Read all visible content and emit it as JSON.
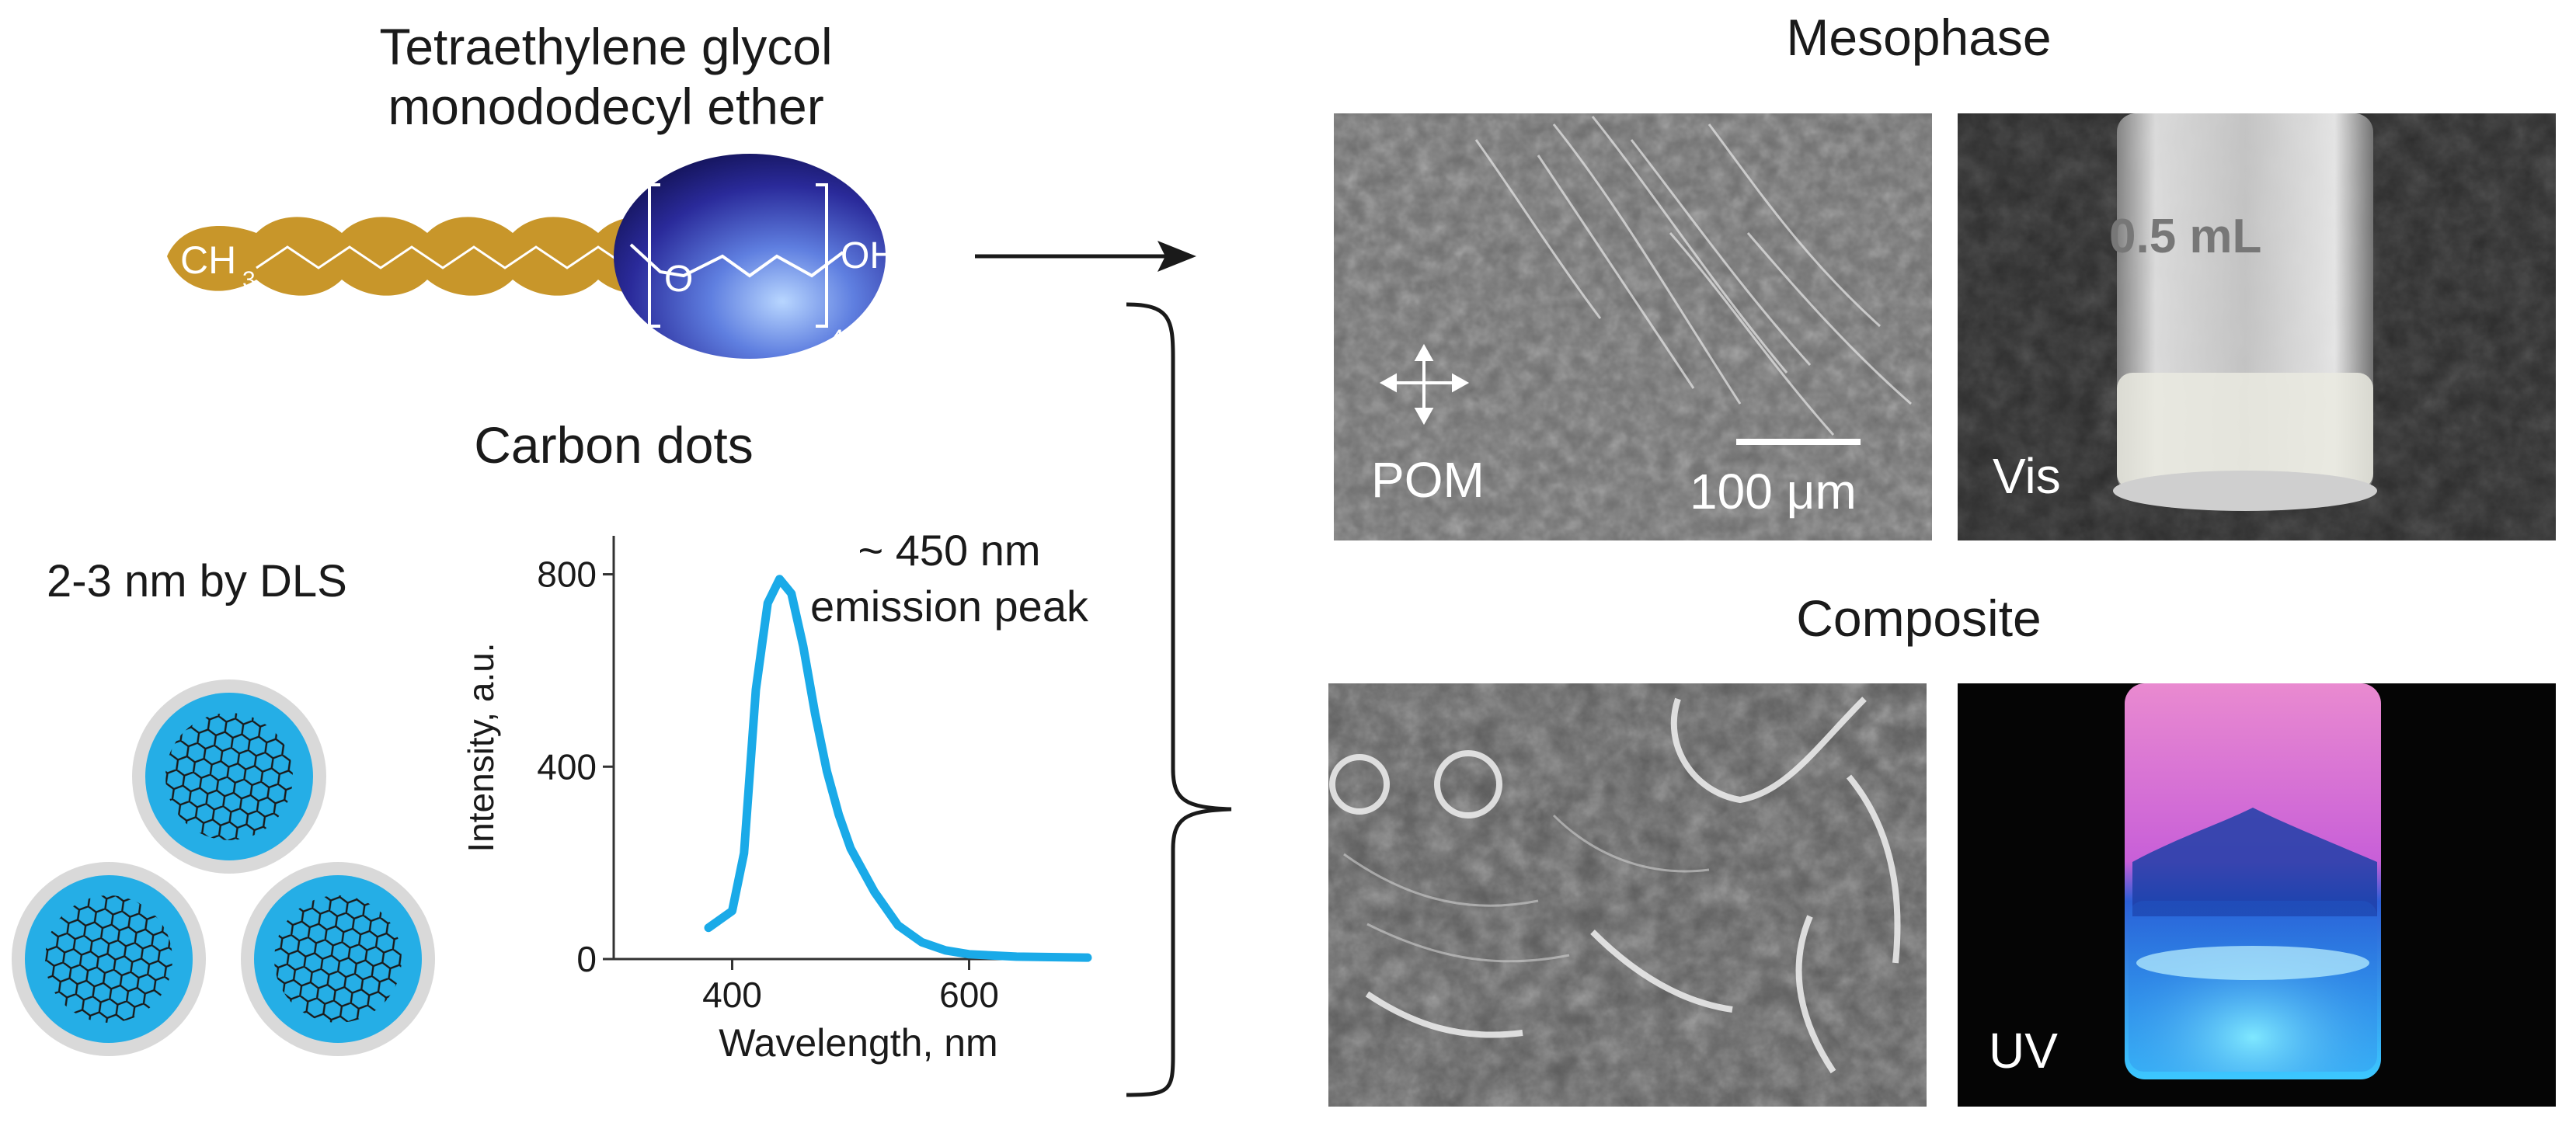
{
  "surfactant": {
    "name_line1": "Tetraethylene glycol",
    "name_line2": "monododecyl ether",
    "tail_ch": "CH",
    "tail_sub": "3",
    "head_o": "O",
    "head_oh": "OH",
    "repeat_n": "4",
    "colors": {
      "tail": "#c8962a",
      "head_dark": "#1f1f80",
      "head_light": "#8fb8ff"
    }
  },
  "carbon_dots": {
    "title": "Carbon dots",
    "size_label": "2-3 nm by DLS",
    "colors": {
      "core": "#25aee6",
      "shell": "#d9d9d9",
      "lattice": "#1a1a1a"
    }
  },
  "chart_data": {
    "type": "line",
    "xlabel": "Wavelength, nm",
    "ylabel": "Intensity, a.u.",
    "xlim": [
      300,
      700
    ],
    "ylim": [
      0,
      880
    ],
    "xticks": [
      400,
      600
    ],
    "yticks": [
      0,
      400,
      800
    ],
    "annotation_line1": "~ 450 nm",
    "annotation_line2": "emission peak",
    "line_color": "#1aaae8",
    "x": [
      380,
      400,
      410,
      420,
      430,
      440,
      450,
      460,
      470,
      480,
      490,
      500,
      520,
      540,
      560,
      580,
      600,
      640,
      700
    ],
    "y": [
      65,
      100,
      220,
      560,
      740,
      790,
      760,
      650,
      510,
      390,
      300,
      230,
      140,
      70,
      35,
      18,
      10,
      5,
      3
    ]
  },
  "mesophase": {
    "title": "Mesophase",
    "pom_label": "POM",
    "scale_label": "100 μm",
    "vis_label": "Vis",
    "vial_text": "0.5 mL"
  },
  "composite": {
    "title": "Composite",
    "uv_label": "UV"
  }
}
